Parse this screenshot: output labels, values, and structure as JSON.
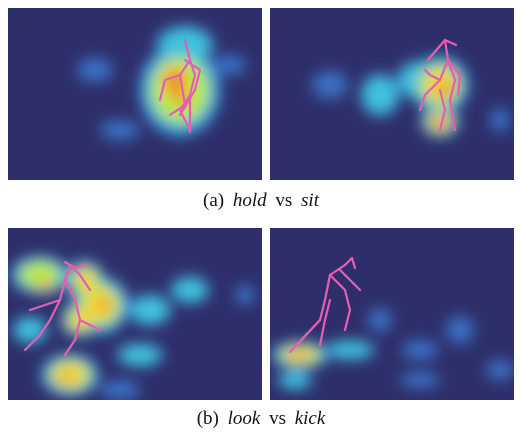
{
  "figure": {
    "captions": [
      {
        "label": "(a)",
        "first": "hold",
        "sep": "vs",
        "second": "sit"
      },
      {
        "label": "(b)",
        "first": "look",
        "sep": "vs",
        "second": "kick"
      }
    ]
  }
}
